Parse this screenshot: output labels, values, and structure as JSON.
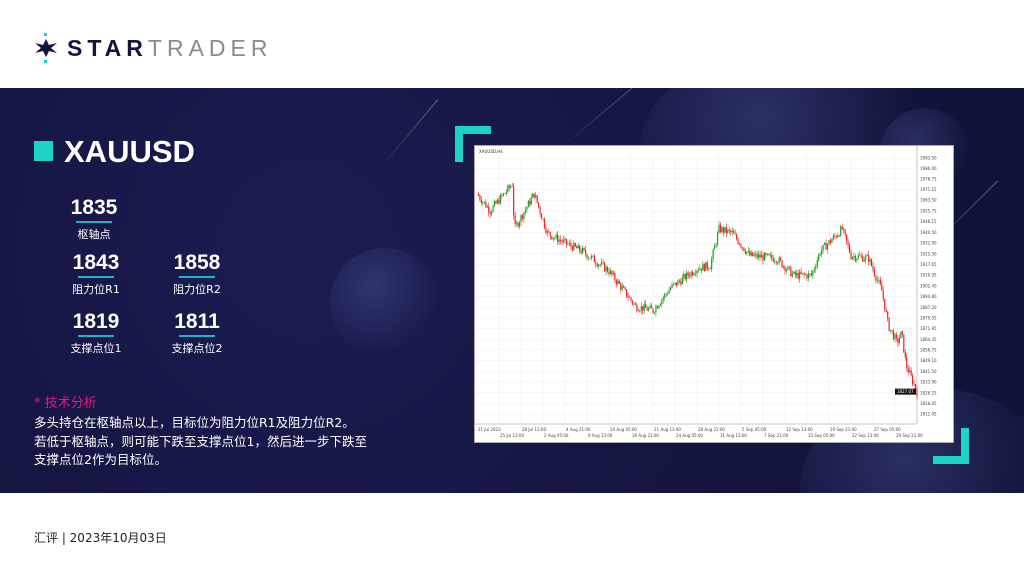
{
  "brand": {
    "logo_part1": "STAR",
    "logo_part2": "TRADER",
    "accent": "#1cd3c4",
    "navy": "#13143f",
    "pink": "#e6197f"
  },
  "instrument": {
    "symbol": "XAUUSD"
  },
  "levels": {
    "pivot": {
      "value": "1835",
      "label": "枢轴点"
    },
    "r1": {
      "value": "1843",
      "label": "阻力位R1"
    },
    "r2": {
      "value": "1858",
      "label": "阻力位R2"
    },
    "s1": {
      "value": "1819",
      "label": "支撑点位1"
    },
    "s2": {
      "value": "1811",
      "label": "支撑点位2"
    }
  },
  "analysis": {
    "heading": "* 技术分析",
    "lines": [
      "多头持仓在枢轴点以上，目标位为阻力位R1及阻力位R2。",
      "若低于枢轴点，则可能下跌至支撑点位1，然后进一步下跌至",
      "支撑点位2作为目标位。"
    ]
  },
  "footer": {
    "text": "汇评 | 2023年10月03日"
  },
  "chart_data": {
    "type": "candlestick",
    "symbol_header": "XAUUSD,H4",
    "ylim": [
      1804,
      1995
    ],
    "y_ticks": [
      "1993.50",
      "1986.00",
      "1978.75",
      "1971.15",
      "1963.50",
      "1955.75",
      "1948.15",
      "1940.50",
      "1932.90",
      "1925.30",
      "1917.65",
      "1910.05",
      "1902.40",
      "1894.80",
      "1887.20",
      "1879.55",
      "1871.95",
      "1864.35",
      "1856.75",
      "1849.10",
      "1841.50",
      "1833.90",
      "1826.25",
      "1818.65",
      "1811.05"
    ],
    "x_ticks": [
      "21 Jul 2023",
      "25 Jul 13:00",
      "28 Jul 13:00",
      "2 Aug 05:00",
      "4 Aug 21:00",
      "9 Aug 13:00",
      "14 Aug 05:00",
      "16 Aug 21:00",
      "21 Aug 13:00",
      "24 Aug 05:00",
      "28 Aug 21:00",
      "31 Aug 13:00",
      "5 Sep 05:00",
      "7 Sep 21:00",
      "12 Sep 13:00",
      "15 Sep 05:00",
      "19 Sep 21:00",
      "22 Sep 13:00",
      "27 Sep 05:00",
      "29 Sep 21:00"
    ],
    "last_price": "1827.07",
    "price_path": [
      [
        0,
        1968
      ],
      [
        0.03,
        1956
      ],
      [
        0.08,
        1975
      ],
      [
        0.085,
        1943
      ],
      [
        0.13,
        1968
      ],
      [
        0.16,
        1940
      ],
      [
        0.2,
        1933
      ],
      [
        0.24,
        1927
      ],
      [
        0.3,
        1913
      ],
      [
        0.36,
        1888
      ],
      [
        0.4,
        1885
      ],
      [
        0.44,
        1901
      ],
      [
        0.5,
        1915
      ],
      [
        0.53,
        1917
      ],
      [
        0.55,
        1943
      ],
      [
        0.58,
        1940
      ],
      [
        0.62,
        1924
      ],
      [
        0.68,
        1922
      ],
      [
        0.72,
        1910
      ],
      [
        0.76,
        1910
      ],
      [
        0.78,
        1927
      ],
      [
        0.83,
        1943
      ],
      [
        0.85,
        1924
      ],
      [
        0.89,
        1922
      ],
      [
        0.92,
        1899
      ],
      [
        0.935,
        1874
      ],
      [
        0.955,
        1862
      ],
      [
        0.965,
        1869
      ],
      [
        0.975,
        1846
      ],
      [
        1.0,
        1827
      ]
    ],
    "up_color": "#1e9e1e",
    "down_color": "#ee2222"
  }
}
